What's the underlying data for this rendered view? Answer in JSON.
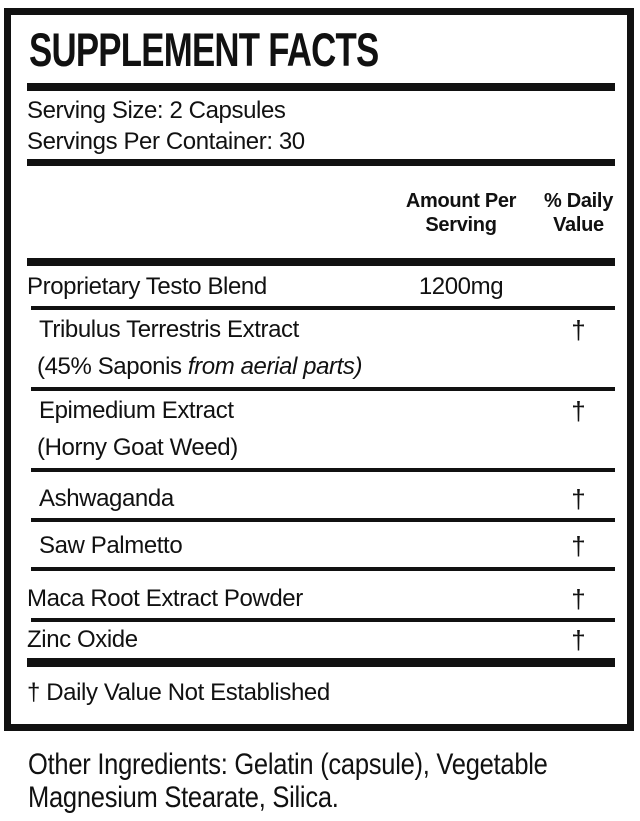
{
  "panel": {
    "title": "SUPPLEMENT FACTS",
    "serving_size": "Serving Size: 2 Capsules",
    "servings_per_container": "Servings Per Container: 30",
    "col_amount_header": "Amount Per Serving",
    "col_dv_header": "% Daily Value",
    "rows": [
      {
        "name": "Proprietary Testo Blend",
        "amount": "1200mg",
        "dv": ""
      },
      {
        "name": "Tribulus Terrestris Extract",
        "amount": "",
        "dv": "†",
        "sub_plain": "(45% Saponis ",
        "sub_italic": "from aerial parts)"
      },
      {
        "name": "Epimedium Extract",
        "amount": "",
        "dv": "†",
        "sub_plain": "(Horny Goat Weed)",
        "sub_italic": ""
      },
      {
        "name": "Ashwaganda",
        "amount": "",
        "dv": "†"
      },
      {
        "name": "Saw Palmetto",
        "amount": "",
        "dv": "†"
      },
      {
        "name": "Maca Root Extract Powder",
        "amount": "",
        "dv": "†"
      },
      {
        "name": "Zinc Oxide",
        "amount": "",
        "dv": "†"
      }
    ],
    "footnote": "† Daily Value Not Established",
    "colors": {
      "ink": "#111111",
      "background": "#ffffff"
    }
  },
  "other_ingredients": {
    "line1": "Other Ingredients: Gelatin (capsule), Vegetable",
    "line2": "Magnesium Stearate, Silica."
  }
}
